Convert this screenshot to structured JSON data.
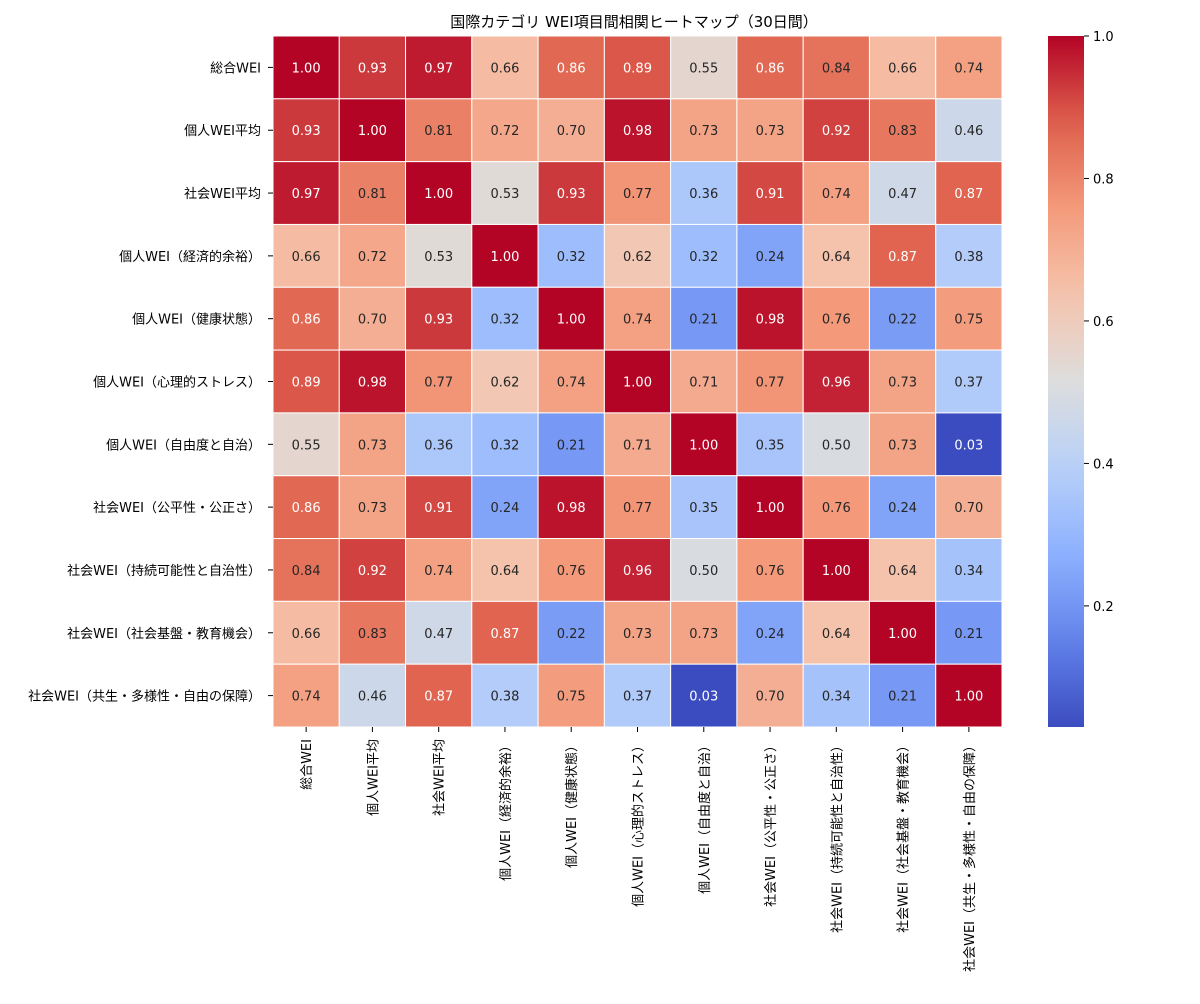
{
  "chart_data": {
    "type": "heatmap",
    "title": "国際カテゴリ WEI項目間相関ヒートマップ（30日間）",
    "labels": [
      "総合WEI",
      "個人WEI平均",
      "社会WEI平均",
      "個人WEI（経済的余裕）",
      "個人WEI（健康状態）",
      "個人WEI（心理的ストレス）",
      "個人WEI（自由度と自治）",
      "社会WEI（公平性・公正さ）",
      "社会WEI（持続可能性と自治性）",
      "社会WEI（社会基盤・教育機会）",
      "社会WEI（共生・多様性・自由の保障）"
    ],
    "matrix": [
      [
        1.0,
        0.93,
        0.97,
        0.66,
        0.86,
        0.89,
        0.55,
        0.86,
        0.84,
        0.66,
        0.74
      ],
      [
        0.93,
        1.0,
        0.81,
        0.72,
        0.7,
        0.98,
        0.73,
        0.73,
        0.92,
        0.83,
        0.46
      ],
      [
        0.97,
        0.81,
        1.0,
        0.53,
        0.93,
        0.77,
        0.36,
        0.91,
        0.74,
        0.47,
        0.87
      ],
      [
        0.66,
        0.72,
        0.53,
        1.0,
        0.32,
        0.62,
        0.32,
        0.24,
        0.64,
        0.87,
        0.38
      ],
      [
        0.86,
        0.7,
        0.93,
        0.32,
        1.0,
        0.74,
        0.21,
        0.98,
        0.76,
        0.22,
        0.75
      ],
      [
        0.89,
        0.98,
        0.77,
        0.62,
        0.74,
        1.0,
        0.71,
        0.77,
        0.96,
        0.73,
        0.37
      ],
      [
        0.55,
        0.73,
        0.36,
        0.32,
        0.21,
        0.71,
        1.0,
        0.35,
        0.5,
        0.73,
        0.03
      ],
      [
        0.86,
        0.73,
        0.91,
        0.24,
        0.98,
        0.77,
        0.35,
        1.0,
        0.76,
        0.24,
        0.7
      ],
      [
        0.84,
        0.92,
        0.74,
        0.64,
        0.76,
        0.96,
        0.5,
        0.76,
        1.0,
        0.64,
        0.34
      ],
      [
        0.66,
        0.83,
        0.47,
        0.87,
        0.22,
        0.73,
        0.73,
        0.24,
        0.64,
        1.0,
        0.21
      ],
      [
        0.74,
        0.46,
        0.87,
        0.38,
        0.75,
        0.37,
        0.03,
        0.7,
        0.34,
        0.21,
        1.0
      ]
    ],
    "vmin": 0.03,
    "vmax": 1.0,
    "colormap": "coolwarm",
    "colorbar_ticks": [
      "0.2",
      "0.4",
      "0.6",
      "0.8",
      "1.0"
    ]
  }
}
